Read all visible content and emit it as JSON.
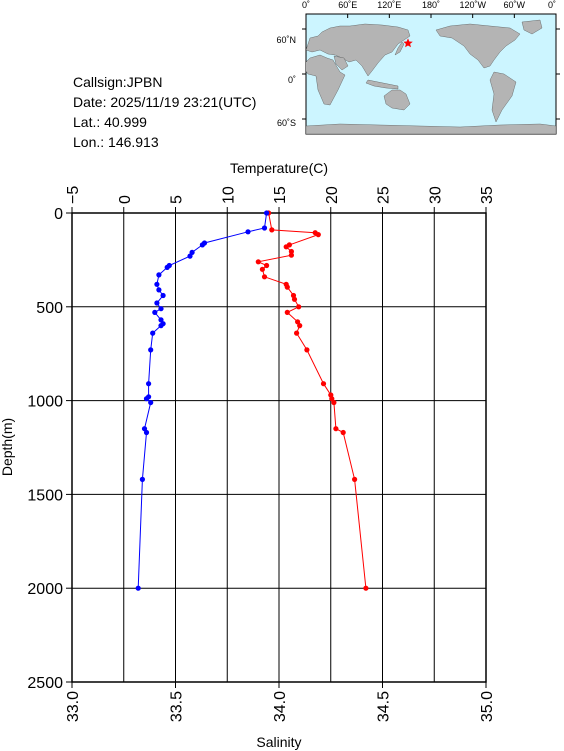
{
  "info": {
    "callsign": "Callsign:JPBN",
    "date": "Date:  2025/11/19 23:21(UTC)",
    "lat": "Lat.:  40.999",
    "lon": "Lon.:  146.913"
  },
  "map": {
    "top_labels": [
      "0˚",
      "60˚E",
      "120˚E",
      "180˚",
      "120˚W",
      "60˚W",
      "0˚"
    ],
    "lat_labels": [
      "60˚N",
      "0˚",
      "60˚S"
    ],
    "ocean_color": "#ccf5ff",
    "land_color": "#b4b4b4",
    "marker_color": "#ff0000",
    "marker": {
      "lat": 40.999,
      "lon": 146.913
    }
  },
  "chart_data": {
    "type": "line",
    "top_axis": {
      "title": "Temperature(C)",
      "range": [
        -5,
        35
      ],
      "ticks": [
        -5,
        0,
        5,
        10,
        15,
        20,
        25,
        30,
        35
      ],
      "tick_labels": [
        "−5",
        "0",
        "5",
        "10",
        "15",
        "20",
        "25",
        "30",
        "35"
      ]
    },
    "bottom_axis": {
      "title": "Salinity",
      "range": [
        33.0,
        35.0
      ],
      "ticks": [
        33.0,
        33.5,
        34.0,
        34.5,
        35.0
      ],
      "tick_labels": [
        "33.0",
        "33.5",
        "34.0",
        "34.5",
        "35.0"
      ]
    },
    "y_axis": {
      "title": "Depth(m)",
      "range": [
        0,
        2500
      ],
      "inverted": true,
      "ticks": [
        0,
        500,
        1000,
        1500,
        2000,
        2500
      ],
      "tick_labels": [
        "0",
        "500",
        "1000",
        "1500",
        "2000",
        "2500"
      ]
    },
    "grid": true,
    "series": [
      {
        "axis": "temperature",
        "color": "#ff0000",
        "points": [
          [
            14.0,
            0
          ],
          [
            14.3,
            90
          ],
          [
            18.5,
            105
          ],
          [
            18.8,
            115
          ],
          [
            16.0,
            170
          ],
          [
            15.7,
            180
          ],
          [
            16.2,
            205
          ],
          [
            16.2,
            225
          ],
          [
            13.0,
            260
          ],
          [
            13.8,
            280
          ],
          [
            13.4,
            300
          ],
          [
            13.6,
            340
          ],
          [
            15.7,
            380
          ],
          [
            15.8,
            395
          ],
          [
            16.4,
            440
          ],
          [
            16.5,
            460
          ],
          [
            16.9,
            500
          ],
          [
            15.8,
            530
          ],
          [
            16.8,
            580
          ],
          [
            17.0,
            600
          ],
          [
            16.7,
            640
          ],
          [
            17.7,
            730
          ],
          [
            19.3,
            910
          ],
          [
            20.0,
            970
          ],
          [
            20.1,
            990
          ],
          [
            20.3,
            1010
          ],
          [
            20.5,
            1150
          ],
          [
            21.2,
            1170
          ],
          [
            22.3,
            1420
          ],
          [
            23.4,
            2000
          ]
        ]
      },
      {
        "axis": "salinity",
        "color": "#0000ff",
        "points": [
          [
            33.94,
            0
          ],
          [
            33.93,
            80
          ],
          [
            33.85,
            100
          ],
          [
            33.64,
            160
          ],
          [
            33.63,
            170
          ],
          [
            33.58,
            210
          ],
          [
            33.57,
            230
          ],
          [
            33.47,
            280
          ],
          [
            33.46,
            290
          ],
          [
            33.42,
            330
          ],
          [
            33.41,
            380
          ],
          [
            33.42,
            410
          ],
          [
            33.44,
            440
          ],
          [
            33.41,
            480
          ],
          [
            33.43,
            510
          ],
          [
            33.4,
            530
          ],
          [
            33.43,
            570
          ],
          [
            33.44,
            590
          ],
          [
            33.43,
            600
          ],
          [
            33.39,
            640
          ],
          [
            33.38,
            730
          ],
          [
            33.37,
            910
          ],
          [
            33.37,
            980
          ],
          [
            33.36,
            990
          ],
          [
            33.38,
            1010
          ],
          [
            33.35,
            1150
          ],
          [
            33.36,
            1170
          ],
          [
            33.34,
            1420
          ],
          [
            33.32,
            2000
          ]
        ]
      }
    ]
  }
}
